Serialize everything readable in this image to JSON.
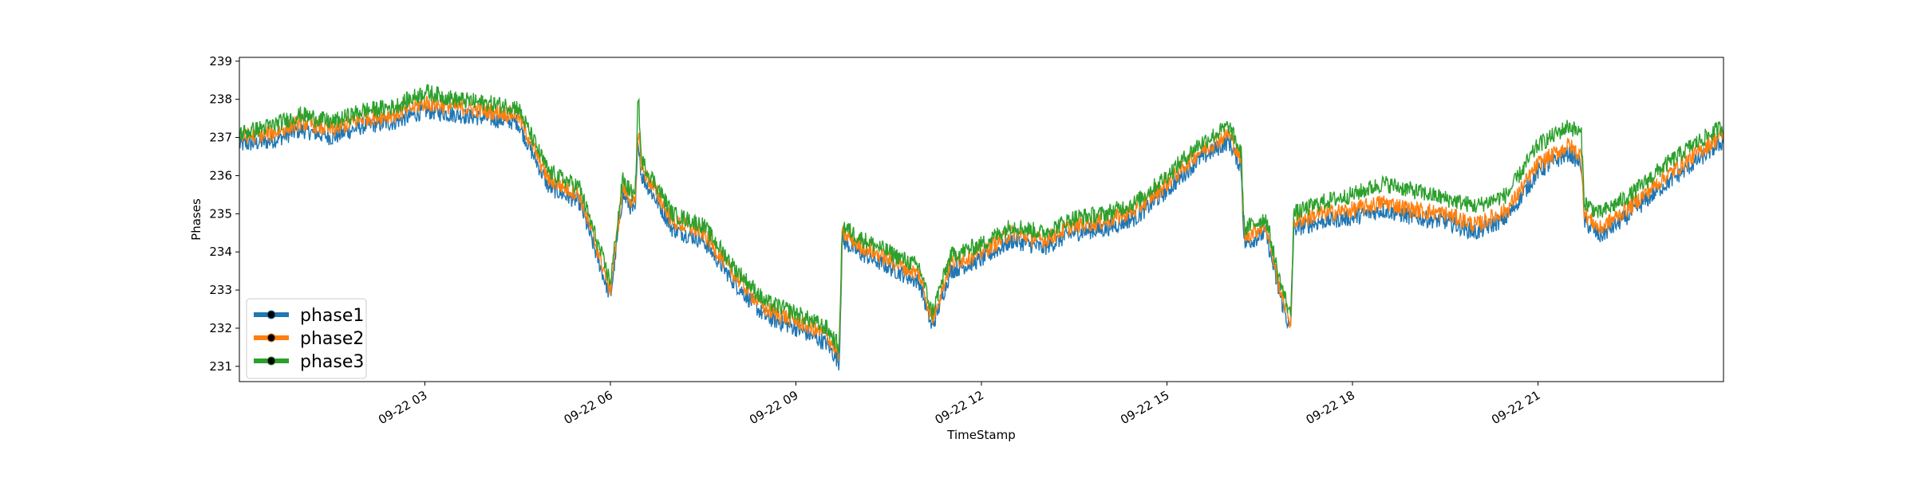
{
  "chart_data": {
    "type": "line",
    "xlabel": "TimeStamp",
    "ylabel": "Phases",
    "ylim": [
      230.6,
      239.1
    ],
    "xlim": [
      0,
      24
    ],
    "y_ticks": [
      231,
      232,
      233,
      234,
      235,
      236,
      237,
      238,
      239
    ],
    "x_ticks": [
      {
        "t": 3,
        "label": "09-22 03"
      },
      {
        "t": 6,
        "label": "09-22 06"
      },
      {
        "t": 9,
        "label": "09-22 09"
      },
      {
        "t": 12,
        "label": "09-22 12"
      },
      {
        "t": 15,
        "label": "09-22 15"
      },
      {
        "t": 18,
        "label": "09-22 18"
      },
      {
        "t": 21,
        "label": "09-22 21"
      }
    ],
    "grid": false,
    "legend": "lower-left",
    "series": [
      {
        "name": "phase1",
        "color": "#1f77b4",
        "points": [
          [
            0,
            236.8
          ],
          [
            0.5,
            236.9
          ],
          [
            1,
            237.2
          ],
          [
            1.5,
            237.0
          ],
          [
            2,
            237.3
          ],
          [
            2.5,
            237.4
          ],
          [
            3,
            237.7
          ],
          [
            3.5,
            237.6
          ],
          [
            4,
            237.5
          ],
          [
            4.5,
            237.4
          ],
          [
            5,
            235.7
          ],
          [
            5.5,
            235.3
          ],
          [
            6,
            232.8
          ],
          [
            6.2,
            235.5
          ],
          [
            6.4,
            235.0
          ],
          [
            6.45,
            237.0
          ],
          [
            6.5,
            236.0
          ],
          [
            6.8,
            235.2
          ],
          [
            7,
            234.6
          ],
          [
            7.5,
            234.3
          ],
          [
            8,
            233.2
          ],
          [
            8.5,
            232.3
          ],
          [
            9,
            232.0
          ],
          [
            9.5,
            231.6
          ],
          [
            9.7,
            231.1
          ],
          [
            9.75,
            234.3
          ],
          [
            10,
            234.0
          ],
          [
            10.5,
            233.6
          ],
          [
            11,
            233.2
          ],
          [
            11.2,
            232.0
          ],
          [
            11.5,
            233.5
          ],
          [
            12,
            233.8
          ],
          [
            12.5,
            234.3
          ],
          [
            13,
            234.1
          ],
          [
            13.5,
            234.5
          ],
          [
            14,
            234.6
          ],
          [
            14.5,
            234.9
          ],
          [
            15,
            235.6
          ],
          [
            15.5,
            236.4
          ],
          [
            16,
            236.9
          ],
          [
            16.2,
            236.2
          ],
          [
            16.25,
            234.2
          ],
          [
            16.6,
            234.5
          ],
          [
            16.8,
            233.0
          ],
          [
            17,
            231.9
          ],
          [
            17.05,
            234.6
          ],
          [
            17.5,
            234.8
          ],
          [
            18,
            234.9
          ],
          [
            18.5,
            235.1
          ],
          [
            19,
            234.9
          ],
          [
            19.5,
            234.8
          ],
          [
            20,
            234.5
          ],
          [
            20.5,
            234.9
          ],
          [
            21,
            236.1
          ],
          [
            21.5,
            236.6
          ],
          [
            21.7,
            236.3
          ],
          [
            21.75,
            234.8
          ],
          [
            22,
            234.4
          ],
          [
            22.5,
            235.0
          ],
          [
            23,
            235.7
          ],
          [
            23.5,
            236.3
          ],
          [
            24,
            236.9
          ]
        ]
      },
      {
        "name": "phase2",
        "color": "#ff7f0e",
        "points": [
          [
            0,
            237.0
          ],
          [
            0.5,
            237.1
          ],
          [
            1,
            237.4
          ],
          [
            1.5,
            237.2
          ],
          [
            2,
            237.5
          ],
          [
            2.5,
            237.6
          ],
          [
            3,
            237.9
          ],
          [
            3.5,
            237.8
          ],
          [
            4,
            237.7
          ],
          [
            4.5,
            237.6
          ],
          [
            5,
            235.9
          ],
          [
            5.5,
            235.5
          ],
          [
            6,
            233.0
          ],
          [
            6.2,
            235.7
          ],
          [
            6.4,
            235.2
          ],
          [
            6.45,
            237.3
          ],
          [
            6.5,
            236.2
          ],
          [
            6.8,
            235.4
          ],
          [
            7,
            234.8
          ],
          [
            7.5,
            234.5
          ],
          [
            8,
            233.4
          ],
          [
            8.5,
            232.5
          ],
          [
            9,
            232.2
          ],
          [
            9.5,
            231.8
          ],
          [
            9.7,
            231.3
          ],
          [
            9.75,
            234.5
          ],
          [
            10,
            234.2
          ],
          [
            10.5,
            233.8
          ],
          [
            11,
            233.4
          ],
          [
            11.2,
            232.2
          ],
          [
            11.5,
            233.7
          ],
          [
            12,
            234.0
          ],
          [
            12.5,
            234.5
          ],
          [
            13,
            234.3
          ],
          [
            13.5,
            234.7
          ],
          [
            14,
            234.8
          ],
          [
            14.5,
            235.1
          ],
          [
            15,
            235.8
          ],
          [
            15.5,
            236.6
          ],
          [
            16,
            237.1
          ],
          [
            16.2,
            236.4
          ],
          [
            16.25,
            234.4
          ],
          [
            16.6,
            234.7
          ],
          [
            16.8,
            233.2
          ],
          [
            17,
            232.1
          ],
          [
            17.05,
            234.8
          ],
          [
            17.5,
            235.0
          ],
          [
            18,
            235.1
          ],
          [
            18.5,
            235.3
          ],
          [
            19,
            235.1
          ],
          [
            19.5,
            235.0
          ],
          [
            20,
            234.7
          ],
          [
            20.5,
            235.1
          ],
          [
            21,
            236.3
          ],
          [
            21.5,
            236.8
          ],
          [
            21.7,
            236.5
          ],
          [
            21.75,
            235.0
          ],
          [
            22,
            234.6
          ],
          [
            22.5,
            235.2
          ],
          [
            23,
            235.9
          ],
          [
            23.5,
            236.5
          ],
          [
            24,
            237.1
          ]
        ]
      },
      {
        "name": "phase3",
        "color": "#2ca02c",
        "points": [
          [
            0,
            237.1
          ],
          [
            0.5,
            237.3
          ],
          [
            1,
            237.6
          ],
          [
            1.5,
            237.4
          ],
          [
            2,
            237.7
          ],
          [
            2.5,
            237.8
          ],
          [
            3,
            238.2
          ],
          [
            3.5,
            238.0
          ],
          [
            4,
            237.9
          ],
          [
            4.5,
            237.8
          ],
          [
            5,
            236.1
          ],
          [
            5.5,
            235.7
          ],
          [
            6,
            233.2
          ],
          [
            6.2,
            235.9
          ],
          [
            6.4,
            235.4
          ],
          [
            6.45,
            238.2
          ],
          [
            6.5,
            236.4
          ],
          [
            6.8,
            235.6
          ],
          [
            7,
            235.0
          ],
          [
            7.5,
            234.7
          ],
          [
            8,
            233.6
          ],
          [
            8.5,
            232.7
          ],
          [
            9,
            232.4
          ],
          [
            9.5,
            232.0
          ],
          [
            9.7,
            231.5
          ],
          [
            9.75,
            234.7
          ],
          [
            10,
            234.4
          ],
          [
            10.5,
            234.0
          ],
          [
            11,
            233.6
          ],
          [
            11.2,
            232.4
          ],
          [
            11.5,
            233.9
          ],
          [
            12,
            234.2
          ],
          [
            12.5,
            234.7
          ],
          [
            13,
            234.5
          ],
          [
            13.5,
            234.9
          ],
          [
            14,
            235.0
          ],
          [
            14.5,
            235.3
          ],
          [
            15,
            236.0
          ],
          [
            15.5,
            236.8
          ],
          [
            16,
            237.3
          ],
          [
            16.2,
            236.6
          ],
          [
            16.25,
            234.6
          ],
          [
            16.6,
            234.9
          ],
          [
            16.8,
            233.4
          ],
          [
            17,
            232.3
          ],
          [
            17.05,
            235.0
          ],
          [
            17.5,
            235.3
          ],
          [
            18,
            235.5
          ],
          [
            18.5,
            235.8
          ],
          [
            19,
            235.6
          ],
          [
            19.5,
            235.4
          ],
          [
            20,
            235.2
          ],
          [
            20.5,
            235.5
          ],
          [
            21,
            236.8
          ],
          [
            21.5,
            237.3
          ],
          [
            21.7,
            237.1
          ],
          [
            21.75,
            235.3
          ],
          [
            22,
            235.0
          ],
          [
            22.5,
            235.5
          ],
          [
            23,
            236.2
          ],
          [
            23.5,
            236.8
          ],
          [
            24,
            237.3
          ]
        ]
      }
    ]
  }
}
